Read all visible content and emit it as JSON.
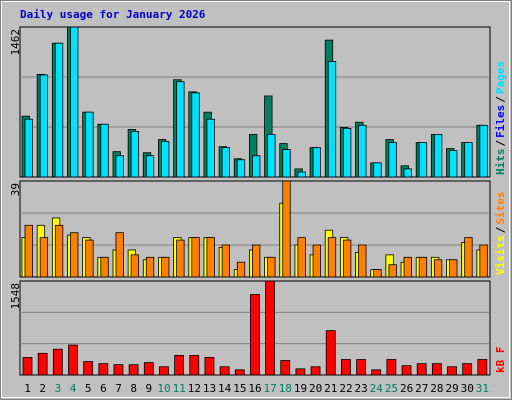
{
  "title": "Daily usage for January 2026",
  "legend_separator": "/",
  "chart_data": [
    {
      "type": "bar",
      "ylim": [
        0,
        1462
      ],
      "yticks": [
        1462
      ],
      "series": [
        {
          "name": "Hits",
          "color": "#00805c",
          "values": [
            593,
            1000,
            1304,
            1462,
            632,
            514,
            247,
            464,
            237,
            365,
            948,
            830,
            632,
            296,
            178,
            415,
            790,
            326,
            79,
            286,
            1334,
            484,
            534,
            138,
            365,
            109,
            336,
            415,
            277,
            336,
            504
          ]
        },
        {
          "name": "Files",
          "color": "#0000ff",
          "values": [
            null,
            null,
            null,
            null,
            null,
            null,
            null,
            null,
            null,
            null,
            null,
            null,
            null,
            null,
            null,
            null,
            null,
            null,
            null,
            null,
            null,
            null,
            null,
            null,
            null,
            null,
            null,
            null,
            null,
            null,
            null
          ]
        },
        {
          "name": "Pages",
          "color": "#00e0ff",
          "values": [
            563,
            995,
            1304,
            1462,
            632,
            514,
            207,
            444,
            207,
            346,
            929,
            820,
            563,
            286,
            168,
            207,
            415,
            267,
            49,
            286,
            1126,
            474,
            504,
            138,
            336,
            79,
            336,
            415,
            257,
            336,
            504
          ]
        }
      ]
    },
    {
      "type": "bar",
      "ylim": [
        0,
        39
      ],
      "yticks": [
        39
      ],
      "series": [
        {
          "name": "Visits",
          "color": "#ffff00",
          "values": [
            16,
            21,
            24,
            17,
            16,
            8,
            11,
            11,
            7,
            8,
            16,
            16,
            16,
            12,
            3,
            11,
            8,
            30,
            13,
            9,
            19,
            16,
            10,
            3,
            9,
            6,
            8,
            8,
            7,
            14,
            11
          ]
        },
        {
          "name": "Sites",
          "color": "#ff8000",
          "values": [
            21,
            16,
            21,
            18,
            15,
            8,
            18,
            9,
            8,
            8,
            15,
            16,
            16,
            13,
            6,
            13,
            8,
            39,
            16,
            13,
            16,
            15,
            13,
            3,
            5,
            8,
            8,
            7,
            7,
            16,
            13
          ]
        }
      ]
    },
    {
      "type": "bar",
      "ylim": [
        0,
        1548
      ],
      "yticks": [
        1548
      ],
      "categories": [
        "1",
        "2",
        "3",
        "4",
        "5",
        "6",
        "7",
        "8",
        "9",
        "10",
        "11",
        "12",
        "13",
        "14",
        "15",
        "16",
        "17",
        "18",
        "19",
        "20",
        "21",
        "22",
        "23",
        "24",
        "25",
        "26",
        "27",
        "28",
        "29",
        "30",
        "31"
      ],
      "category_colors": [
        "#000000",
        "#000000",
        "#00805c",
        "#00805c",
        "#000000",
        "#000000",
        "#000000",
        "#000000",
        "#000000",
        "#00805c",
        "#00805c",
        "#000000",
        "#000000",
        "#000000",
        "#000000",
        "#000000",
        "#00805c",
        "#00805c",
        "#000000",
        "#000000",
        "#000000",
        "#000000",
        "#000000",
        "#00805c",
        "#00805c",
        "#000000",
        "#000000",
        "#000000",
        "#000000",
        "#000000",
        "#00805c"
      ],
      "series": [
        {
          "name": "kB F",
          "color": "#ff0000",
          "values": [
            289,
            357,
            425,
            493,
            221,
            187,
            170,
            170,
            204,
            136,
            323,
            323,
            289,
            136,
            85,
            1327,
            1548,
            238,
            102,
            136,
            731,
            255,
            255,
            85,
            255,
            153,
            187,
            187,
            136,
            187,
            255
          ]
        }
      ]
    }
  ]
}
